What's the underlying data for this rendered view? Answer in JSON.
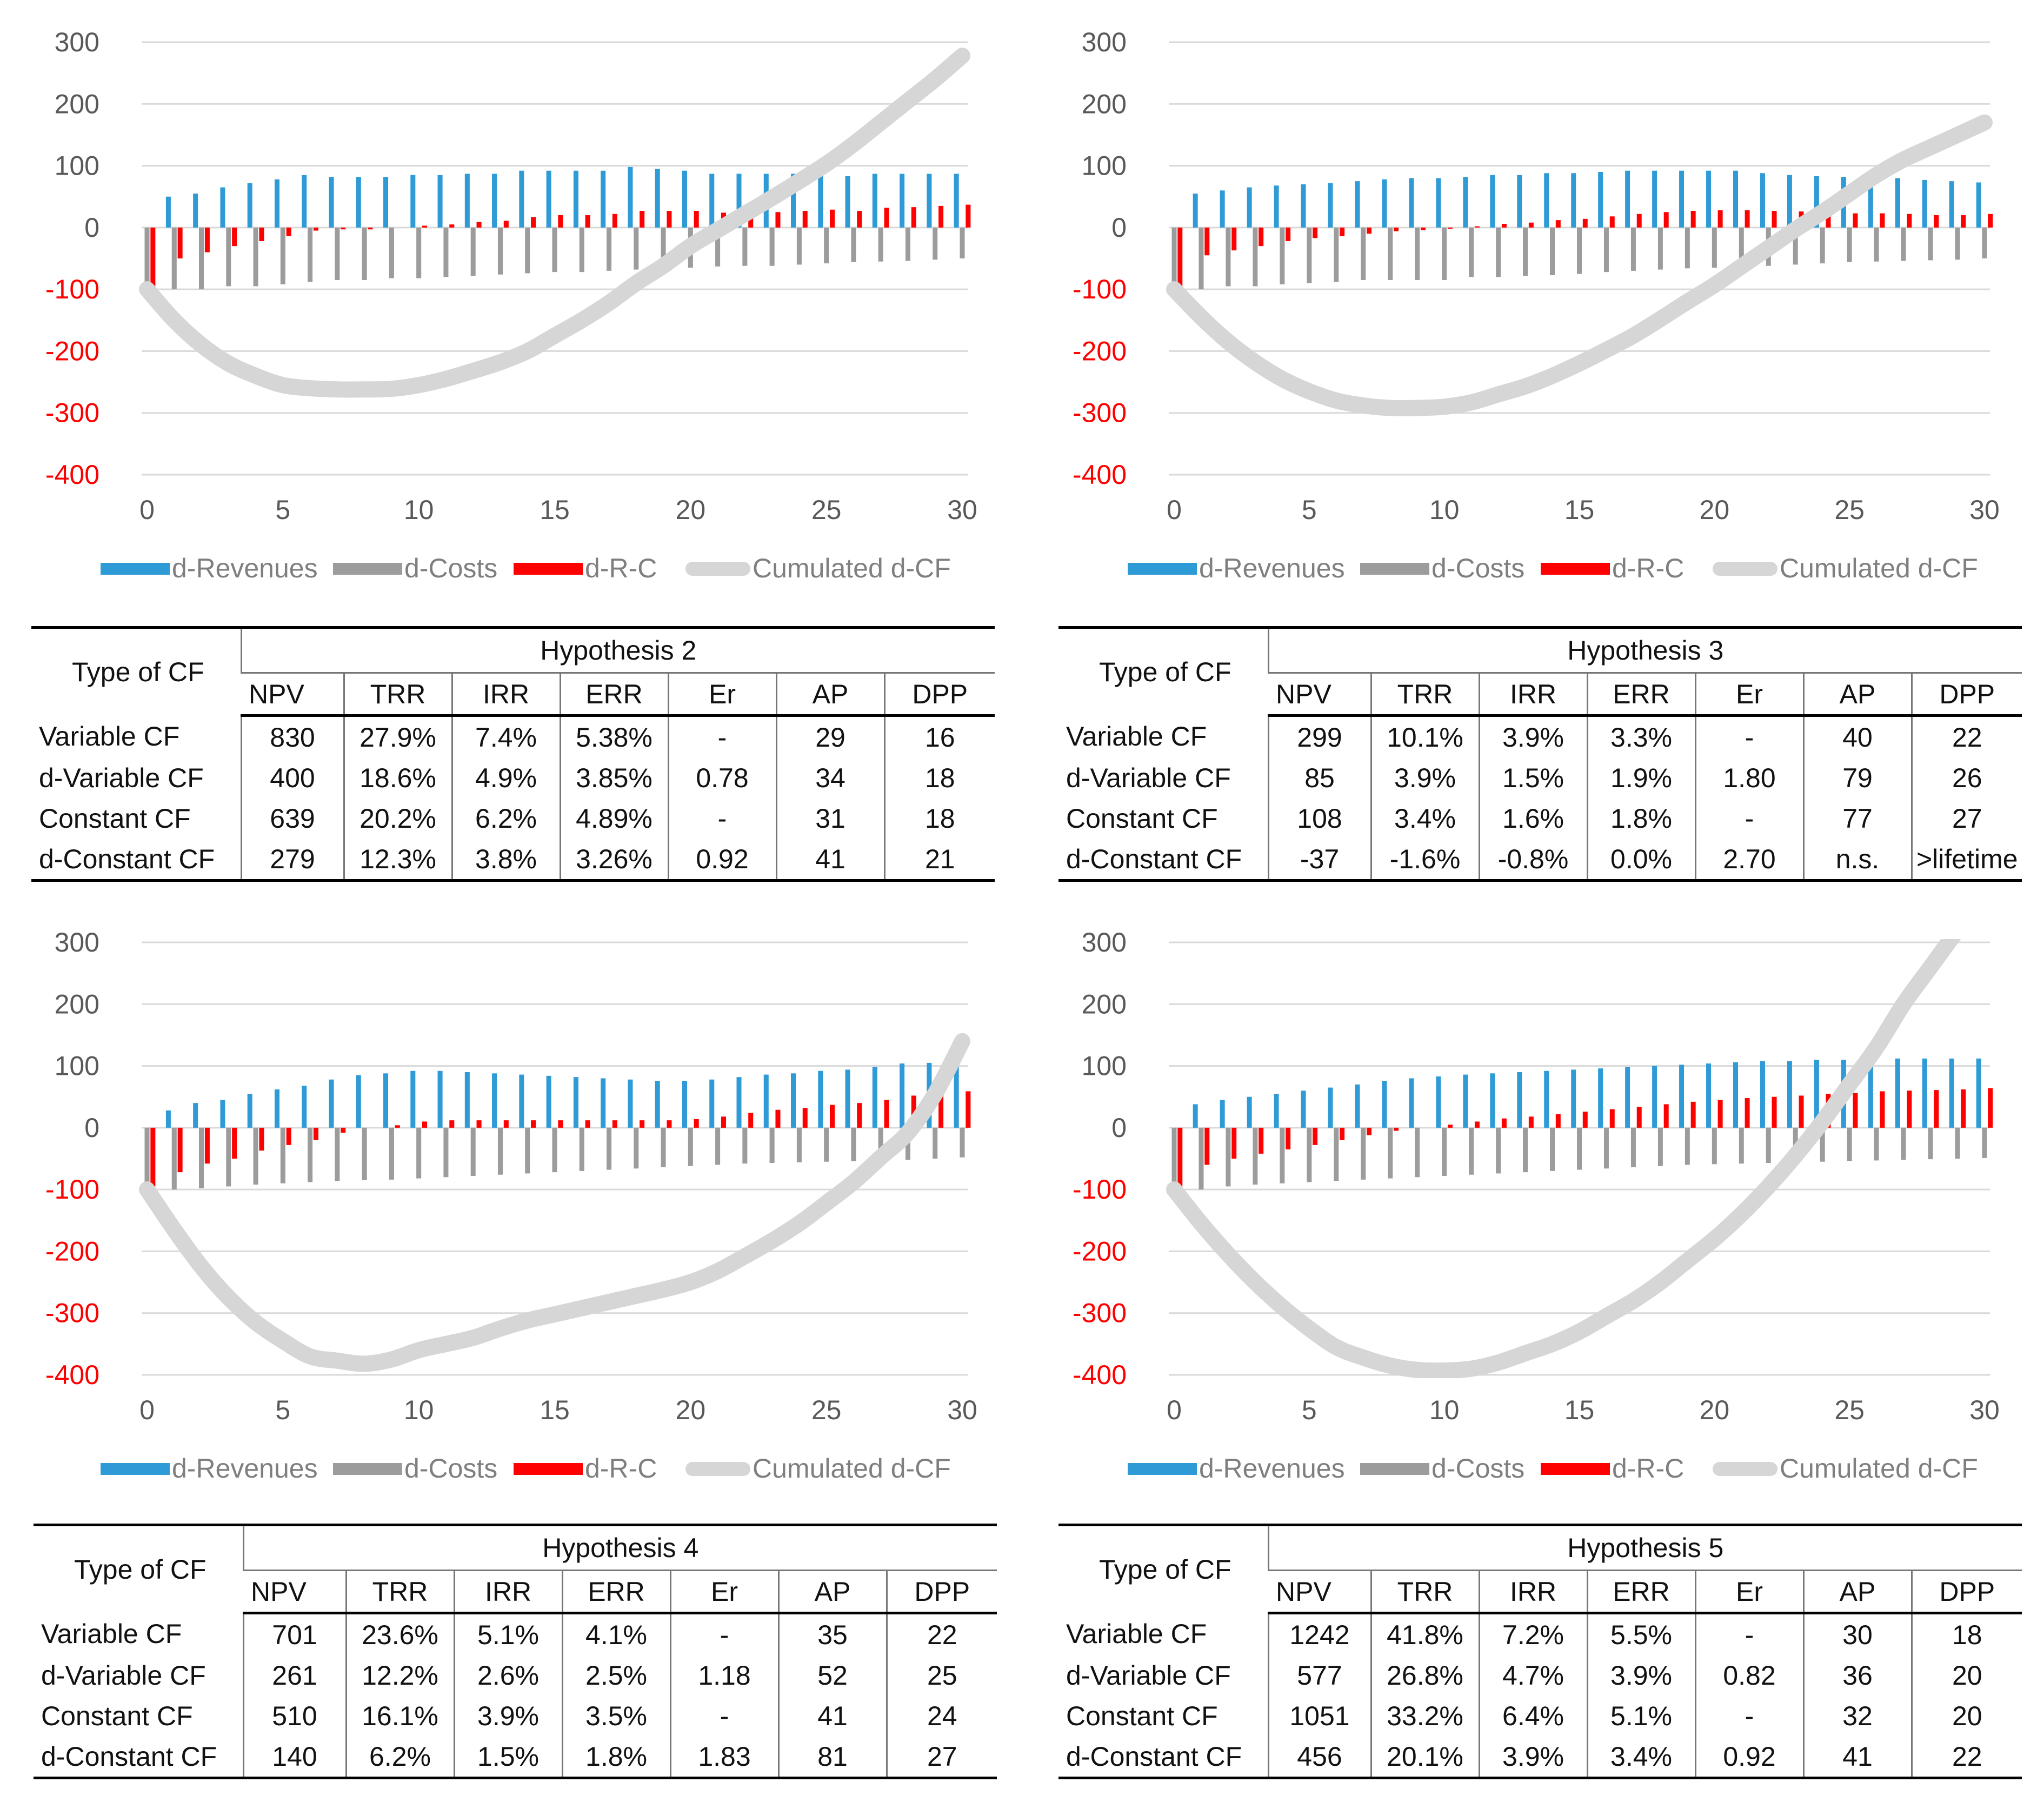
{
  "colors": {
    "revenues": "#2e9bd6",
    "costs": "#9c9c9c",
    "rc": "#ff0000",
    "cumulated": "#d6d6d6",
    "grid": "#d9d9d9",
    "tick_positive": "#595959",
    "tick_negative": "#ff0000"
  },
  "legend": [
    "d-Revenues",
    "d-Costs",
    "d-R-C",
    "Cumulated d-CF"
  ],
  "chart_data": [
    {
      "type": "bar",
      "title": "",
      "xlabel": "",
      "ylabel": "",
      "xlim": [
        0,
        30
      ],
      "ylim": [
        -400,
        300
      ],
      "x_ticks": [
        "0",
        "5",
        "10",
        "15",
        "20",
        "25",
        "30"
      ],
      "y_ticks": [
        "300",
        "200",
        "100",
        "0",
        "-100",
        "-200",
        "-300",
        "-400"
      ],
      "grid": true,
      "legend_position": "bottom",
      "x": [
        0,
        1,
        2,
        3,
        4,
        5,
        6,
        7,
        8,
        9,
        10,
        11,
        12,
        13,
        14,
        15,
        16,
        17,
        18,
        19,
        20,
        21,
        22,
        23,
        24,
        25,
        26,
        27,
        28,
        29,
        30
      ],
      "series": [
        {
          "name": "d-Revenues",
          "type": "bar",
          "values": [
            0,
            50,
            55,
            65,
            72,
            78,
            85,
            82,
            82,
            82,
            85,
            85,
            87,
            87,
            92,
            92,
            92,
            92,
            98,
            95,
            92,
            87,
            87,
            87,
            87,
            87,
            83,
            87,
            87,
            87,
            87
          ]
        },
        {
          "name": "d-Costs",
          "type": "bar",
          "values": [
            -95,
            -100,
            -100,
            -95,
            -95,
            -92,
            -88,
            -85,
            -85,
            -82,
            -82,
            -80,
            -78,
            -76,
            -74,
            -72,
            -72,
            -70,
            -68,
            -66,
            -65,
            -63,
            -62,
            -62,
            -60,
            -58,
            -56,
            -55,
            -54,
            -52,
            -50
          ]
        },
        {
          "name": "d-R-C",
          "type": "bar",
          "values": [
            -95,
            -50,
            -40,
            -30,
            -22,
            -14,
            -5,
            -3,
            -3,
            0,
            3,
            5,
            9,
            11,
            17,
            20,
            20,
            22,
            27,
            27,
            27,
            24,
            25,
            25,
            27,
            29,
            27,
            32,
            33,
            35,
            37
          ]
        },
        {
          "name": "Cumulated d-CF",
          "type": "line",
          "values": [
            -100,
            -150,
            -190,
            -220,
            -240,
            -255,
            -260,
            -262,
            -262,
            -261,
            -255,
            -245,
            -232,
            -218,
            -200,
            -175,
            -150,
            -122,
            -90,
            -62,
            -30,
            -4,
            22,
            48,
            75,
            103,
            135,
            170,
            205,
            240,
            278
          ]
        }
      ]
    },
    {
      "type": "bar",
      "title": "",
      "xlabel": "",
      "ylabel": "",
      "xlim": [
        0,
        30
      ],
      "ylim": [
        -400,
        300
      ],
      "x_ticks": [
        "0",
        "5",
        "10",
        "15",
        "20",
        "25",
        "30"
      ],
      "y_ticks": [
        "300",
        "200",
        "100",
        "0",
        "-100",
        "-200",
        "-300",
        "-400"
      ],
      "grid": true,
      "legend_position": "bottom",
      "x": [
        0,
        1,
        2,
        3,
        4,
        5,
        6,
        7,
        8,
        9,
        10,
        11,
        12,
        13,
        14,
        15,
        16,
        17,
        18,
        19,
        20,
        21,
        22,
        23,
        24,
        25,
        26,
        27,
        28,
        29,
        30
      ],
      "series": [
        {
          "name": "d-Revenues",
          "type": "bar",
          "values": [
            0,
            55,
            60,
            65,
            68,
            70,
            72,
            75,
            78,
            80,
            80,
            82,
            85,
            85,
            88,
            88,
            90,
            92,
            92,
            92,
            92,
            92,
            88,
            85,
            83,
            82,
            80,
            80,
            77,
            75,
            73
          ]
        },
        {
          "name": "d-Costs",
          "type": "bar",
          "values": [
            -95,
            -100,
            -95,
            -95,
            -92,
            -90,
            -88,
            -85,
            -85,
            -85,
            -85,
            -80,
            -80,
            -78,
            -77,
            -75,
            -72,
            -70,
            -68,
            -66,
            -65,
            -64,
            -62,
            -60,
            -58,
            -56,
            -55,
            -54,
            -53,
            -52,
            -50
          ]
        },
        {
          "name": "d-R-C",
          "type": "bar",
          "values": [
            -95,
            -45,
            -37,
            -30,
            -22,
            -17,
            -14,
            -10,
            -6,
            -4,
            -2,
            2,
            6,
            8,
            12,
            14,
            18,
            22,
            25,
            27,
            28,
            28,
            27,
            26,
            25,
            23,
            23,
            22,
            20,
            20,
            22
          ]
        },
        {
          "name": "Cumulated d-CF",
          "type": "line",
          "values": [
            -100,
            -145,
            -185,
            -218,
            -245,
            -265,
            -280,
            -288,
            -292,
            -292,
            -290,
            -283,
            -270,
            -257,
            -240,
            -220,
            -198,
            -175,
            -148,
            -120,
            -93,
            -63,
            -33,
            -3,
            25,
            55,
            85,
            110,
            130,
            150,
            170
          ]
        }
      ]
    },
    {
      "type": "bar",
      "title": "",
      "xlabel": "",
      "ylabel": "",
      "xlim": [
        0,
        30
      ],
      "ylim": [
        -400,
        300
      ],
      "x_ticks": [
        "0",
        "5",
        "10",
        "15",
        "20",
        "25",
        "30"
      ],
      "y_ticks": [
        "300",
        "200",
        "100",
        "0",
        "-100",
        "-200",
        "-300",
        "-400"
      ],
      "grid": true,
      "legend_position": "bottom",
      "x": [
        0,
        1,
        2,
        3,
        4,
        5,
        6,
        7,
        8,
        9,
        10,
        11,
        12,
        13,
        14,
        15,
        16,
        17,
        18,
        19,
        20,
        21,
        22,
        23,
        24,
        25,
        26,
        27,
        28,
        29,
        30
      ],
      "series": [
        {
          "name": "d-Revenues",
          "type": "bar",
          "values": [
            0,
            28,
            40,
            45,
            55,
            62,
            68,
            78,
            85,
            88,
            92,
            92,
            90,
            88,
            86,
            84,
            82,
            80,
            78,
            76,
            76,
            78,
            82,
            86,
            88,
            92,
            94,
            98,
            104,
            105,
            107
          ]
        },
        {
          "name": "d-Costs",
          "type": "bar",
          "values": [
            -95,
            -100,
            -98,
            -95,
            -92,
            -90,
            -88,
            -86,
            -85,
            -84,
            -82,
            -80,
            -78,
            -76,
            -74,
            -72,
            -70,
            -68,
            -66,
            -64,
            -62,
            -60,
            -58,
            -57,
            -56,
            -55,
            -54,
            -53,
            -52,
            -50,
            -48
          ]
        },
        {
          "name": "d-R-C",
          "type": "bar",
          "values": [
            -95,
            -72,
            -58,
            -50,
            -37,
            -28,
            -20,
            -8,
            0,
            4,
            10,
            12,
            12,
            12,
            12,
            12,
            12,
            12,
            12,
            12,
            14,
            18,
            24,
            29,
            32,
            37,
            40,
            45,
            52,
            55,
            59
          ]
        },
        {
          "name": "Cumulated d-CF",
          "type": "line",
          "values": [
            -100,
            -165,
            -225,
            -275,
            -315,
            -345,
            -370,
            -377,
            -382,
            -375,
            -360,
            -350,
            -340,
            -325,
            -312,
            -302,
            -292,
            -282,
            -272,
            -262,
            -250,
            -232,
            -208,
            -183,
            -155,
            -122,
            -88,
            -48,
            -8,
            55,
            140
          ]
        }
      ]
    },
    {
      "type": "bar",
      "title": "",
      "xlabel": "",
      "ylabel": "",
      "xlim": [
        0,
        30
      ],
      "ylim": [
        -400,
        300
      ],
      "x_ticks": [
        "0",
        "5",
        "10",
        "15",
        "20",
        "25",
        "30"
      ],
      "y_ticks": [
        "300",
        "200",
        "100",
        "0",
        "-100",
        "-200",
        "-300",
        "-400"
      ],
      "grid": true,
      "legend_position": "bottom",
      "x": [
        0,
        1,
        2,
        3,
        4,
        5,
        6,
        7,
        8,
        9,
        10,
        11,
        12,
        13,
        14,
        15,
        16,
        17,
        18,
        19,
        20,
        21,
        22,
        23,
        24,
        25,
        26,
        27,
        28,
        29,
        30
      ],
      "series": [
        {
          "name": "d-Revenues",
          "type": "bar",
          "values": [
            0,
            38,
            45,
            50,
            55,
            60,
            65,
            70,
            76,
            80,
            83,
            86,
            88,
            90,
            92,
            94,
            96,
            98,
            100,
            102,
            104,
            106,
            108,
            108,
            110,
            110,
            112,
            112,
            112,
            112,
            112
          ]
        },
        {
          "name": "d-Costs",
          "type": "bar",
          "values": [
            -95,
            -100,
            -95,
            -92,
            -90,
            -88,
            -86,
            -84,
            -82,
            -80,
            -78,
            -76,
            -74,
            -72,
            -70,
            -68,
            -66,
            -64,
            -62,
            -60,
            -59,
            -58,
            -57,
            -56,
            -55,
            -54,
            -53,
            -52,
            -51,
            -50,
            -49
          ]
        },
        {
          "name": "d-R-C",
          "type": "bar",
          "values": [
            -95,
            -60,
            -50,
            -42,
            -35,
            -28,
            -20,
            -12,
            -5,
            0,
            5,
            10,
            15,
            18,
            22,
            26,
            30,
            34,
            38,
            42,
            45,
            48,
            50,
            52,
            55,
            56,
            59,
            60,
            61,
            62,
            64
          ]
        },
        {
          "name": "Cumulated d-CF",
          "type": "line",
          "values": [
            -100,
            -155,
            -205,
            -250,
            -290,
            -325,
            -355,
            -372,
            -385,
            -392,
            -393,
            -390,
            -380,
            -365,
            -350,
            -330,
            -305,
            -280,
            -250,
            -215,
            -180,
            -140,
            -95,
            -45,
            10,
            70,
            130,
            200,
            260,
            320,
            380
          ]
        }
      ]
    }
  ],
  "tables": [
    {
      "type_header": "Type of CF",
      "hypothesis": "Hypothesis 2",
      "columns": [
        "NPV",
        "TRR",
        "IRR",
        "ERR",
        "Er",
        "AP",
        "DPP"
      ],
      "rows": [
        {
          "label": "Variable CF",
          "values": [
            "830",
            "27.9%",
            "7.4%",
            "5.38%",
            "-",
            "29",
            "16"
          ]
        },
        {
          "label": "d-Variable CF",
          "values": [
            "400",
            "18.6%",
            "4.9%",
            "3.85%",
            "0.78",
            "34",
            "18"
          ]
        },
        {
          "label": "Constant CF",
          "values": [
            "639",
            "20.2%",
            "6.2%",
            "4.89%",
            "-",
            "31",
            "18"
          ]
        },
        {
          "label": "d-Constant CF",
          "values": [
            "279",
            "12.3%",
            "3.8%",
            "3.26%",
            "0.92",
            "41",
            "21"
          ]
        }
      ]
    },
    {
      "type_header": "Type of CF",
      "hypothesis": "Hypothesis 3",
      "columns": [
        "NPV",
        "TRR",
        "IRR",
        "ERR",
        "Er",
        "AP",
        "DPP"
      ],
      "rows": [
        {
          "label": "Variable CF",
          "values": [
            "299",
            "10.1%",
            "3.9%",
            "3.3%",
            "-",
            "40",
            "22"
          ]
        },
        {
          "label": "d-Variable CF",
          "values": [
            "85",
            "3.9%",
            "1.5%",
            "1.9%",
            "1.80",
            "79",
            "26"
          ]
        },
        {
          "label": "Constant CF",
          "values": [
            "108",
            "3.4%",
            "1.6%",
            "1.8%",
            "-",
            "77",
            "27"
          ]
        },
        {
          "label": "d-Constant CF",
          "values": [
            "-37",
            "-1.6%",
            "-0.8%",
            "0.0%",
            "2.70",
            "n.s.",
            ">lifetime"
          ]
        }
      ]
    },
    {
      "type_header": "Type of CF",
      "hypothesis": "Hypothesis 4",
      "columns": [
        "NPV",
        "TRR",
        "IRR",
        "ERR",
        "Er",
        "AP",
        "DPP"
      ],
      "rows": [
        {
          "label": "Variable CF",
          "values": [
            "701",
            "23.6%",
            "5.1%",
            "4.1%",
            "-",
            "35",
            "22"
          ]
        },
        {
          "label": "d-Variable CF",
          "values": [
            "261",
            "12.2%",
            "2.6%",
            "2.5%",
            "1.18",
            "52",
            "25"
          ]
        },
        {
          "label": "Constant CF",
          "values": [
            "510",
            "16.1%",
            "3.9%",
            "3.5%",
            "-",
            "41",
            "24"
          ]
        },
        {
          "label": "d-Constant CF",
          "values": [
            "140",
            "6.2%",
            "1.5%",
            "1.8%",
            "1.83",
            "81",
            "27"
          ]
        }
      ]
    },
    {
      "type_header": "Type of CF",
      "hypothesis": "Hypothesis 5",
      "columns": [
        "NPV",
        "TRR",
        "IRR",
        "ERR",
        "Er",
        "AP",
        "DPP"
      ],
      "rows": [
        {
          "label": "Variable CF",
          "values": [
            "1242",
            "41.8%",
            "7.2%",
            "5.5%",
            "-",
            "30",
            "18"
          ]
        },
        {
          "label": "d-Variable CF",
          "values": [
            "577",
            "26.8%",
            "4.7%",
            "3.9%",
            "0.82",
            "36",
            "20"
          ]
        },
        {
          "label": "Constant CF",
          "values": [
            "1051",
            "33.2%",
            "6.4%",
            "5.1%",
            "-",
            "32",
            "20"
          ]
        },
        {
          "label": "d-Constant CF",
          "values": [
            "456",
            "20.1%",
            "3.9%",
            "3.4%",
            "0.92",
            "41",
            "22"
          ]
        }
      ]
    }
  ]
}
